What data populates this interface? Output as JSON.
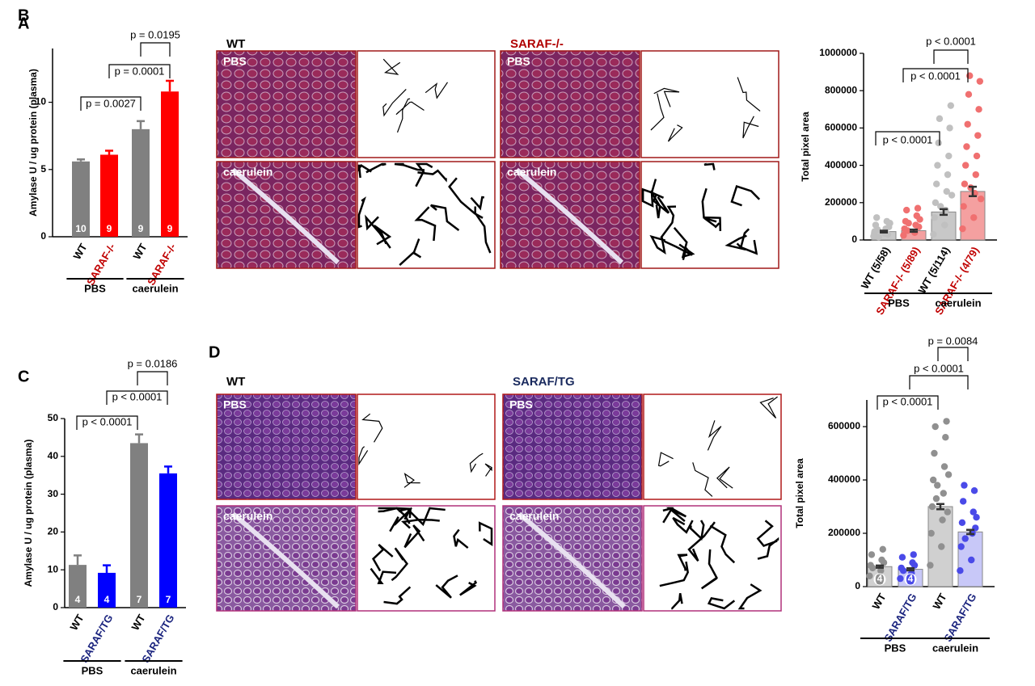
{
  "chart_data": [
    {
      "type": "bar",
      "panel": "A",
      "ylabel": "Amylase U / ug protein (plasma)",
      "categories": [
        "WT",
        "SARAF-/-",
        "WT",
        "SARAF-/-"
      ],
      "category_colors": [
        "#000000",
        "#c00000",
        "#000000",
        "#c00000"
      ],
      "values": [
        5.6,
        6.1,
        8.0,
        10.8
      ],
      "errors": [
        0.15,
        0.3,
        0.6,
        0.8
      ],
      "colors": [
        "#808080",
        "#ff0000",
        "#808080",
        "#ff0000"
      ],
      "n_labels": [
        "10",
        "9",
        "9",
        "9"
      ],
      "ylim": [
        0,
        14
      ],
      "yticks": [
        0,
        5,
        10
      ],
      "groups": [
        "PBS",
        "caerulein"
      ],
      "comparisons": [
        "p = 0.0027",
        "p = 0.0001",
        "p = 0.0195"
      ]
    },
    {
      "type": "bar_scatter",
      "ylabel": "Total pixel area",
      "categories": [
        "WT (5/58)",
        "SARAF-/- (5/89)",
        "WT (5/114)",
        "SARAF-/- (4/79)"
      ],
      "category_colors": [
        "#000000",
        "#c00000",
        "#000000",
        "#c00000"
      ],
      "values": [
        45000,
        50000,
        150000,
        260000
      ],
      "errors": [
        5000,
        6000,
        15000,
        25000
      ],
      "colors": [
        "#c8c8c8",
        "#f4a0a0",
        "#c8c8c8",
        "#f4a0a0"
      ],
      "point_colors": [
        "#c0c0c0",
        "#f07070",
        "#c0c0c0",
        "#f07070"
      ],
      "points": [
        [
          20000,
          35000,
          45000,
          60000,
          80000,
          100000,
          120000,
          30000,
          55000,
          70000,
          15000,
          90000
        ],
        [
          25000,
          40000,
          60000,
          80000,
          100000,
          130000,
          160000,
          170000,
          50000,
          70000,
          90000,
          110000
        ],
        [
          30000,
          80000,
          120000,
          160000,
          200000,
          260000,
          300000,
          350000,
          400000,
          450000,
          520000,
          600000,
          650000,
          720000,
          180000,
          240000
        ],
        [
          60000,
          120000,
          180000,
          250000,
          300000,
          350000,
          400000,
          450000,
          500000,
          560000,
          620000,
          700000,
          780000,
          850000,
          880000,
          220000,
          280000
        ]
      ],
      "ylim": [
        0,
        1000000
      ],
      "yticks": [
        0,
        200000,
        400000,
        600000,
        800000,
        1000000
      ],
      "groups": [
        "PBS",
        "caerulein"
      ],
      "comparisons": [
        "p < 0.0001",
        "p < 0.0001",
        "p < 0.0001"
      ]
    },
    {
      "type": "bar",
      "panel": "C",
      "ylabel": "Amylase U / ug protein (plasma)",
      "categories": [
        "WT",
        "SARAF/TG",
        "WT",
        "SARAF/TG"
      ],
      "category_colors": [
        "#000000",
        "#1a237e",
        "#000000",
        "#1a237e"
      ],
      "values": [
        11.3,
        9.2,
        43.5,
        35.5
      ],
      "errors": [
        2.5,
        2.0,
        2.3,
        1.8
      ],
      "colors": [
        "#808080",
        "#0000ff",
        "#808080",
        "#0000ff"
      ],
      "n_labels": [
        "4",
        "4",
        "7",
        "7"
      ],
      "ylim": [
        0,
        50
      ],
      "yticks": [
        0,
        10,
        20,
        30,
        40,
        50
      ],
      "groups": [
        "PBS",
        "caerulein"
      ],
      "comparisons": [
        "p < 0.0001",
        "p < 0.0001",
        "p = 0.0186"
      ]
    },
    {
      "type": "bar_scatter",
      "ylabel": "Total pixel area",
      "categories": [
        "WT",
        "SARAF/TG",
        "WT",
        "SARAF/TG"
      ],
      "category_colors": [
        "#000000",
        "#1a237e",
        "#000000",
        "#1a237e"
      ],
      "values": [
        75000,
        65000,
        300000,
        205000
      ],
      "errors": [
        4000,
        4000,
        10000,
        8000
      ],
      "colors": [
        "#d0d0d0",
        "#c8c8f8",
        "#d0d0d0",
        "#c8c8f8"
      ],
      "point_colors": [
        "#909090",
        "#4a4ae8",
        "#909090",
        "#4a4ae8"
      ],
      "points": [
        [
          40000,
          60000,
          80000,
          100000,
          120000,
          140000,
          70000,
          90000
        ],
        [
          30000,
          50000,
          70000,
          90000,
          110000,
          120000,
          60000,
          80000
        ],
        [
          80000,
          150000,
          200000,
          250000,
          300000,
          350000,
          400000,
          450000,
          500000,
          560000,
          600000,
          620000,
          330000,
          280000,
          380000,
          420000
        ],
        [
          60000,
          100000,
          150000,
          200000,
          240000,
          280000,
          320000,
          360000,
          380000,
          220000,
          180000,
          260000
        ]
      ],
      "n_labels": [
        "(4)",
        "(4)",
        null,
        null
      ],
      "ylim": [
        0,
        700000
      ],
      "yticks": [
        0,
        200000,
        400000,
        600000
      ],
      "groups": [
        "PBS",
        "caerulein"
      ],
      "comparisons": [
        "p < 0.0001",
        "p < 0.0001",
        "p = 0.0084"
      ]
    }
  ],
  "image_panels": [
    {
      "panel": "B",
      "groups": [
        {
          "label": "WT",
          "color": "#000000"
        },
        {
          "label": "SARAF-/-",
          "color": "#b00000"
        }
      ],
      "rows": [
        "PBS",
        "caerulein"
      ]
    },
    {
      "panel": "D",
      "groups": [
        {
          "label": "WT",
          "color": "#000000"
        },
        {
          "label": "SARAF/TG",
          "color": "#1a2a5e"
        }
      ],
      "rows": [
        "PBS",
        "caerulein"
      ]
    }
  ]
}
